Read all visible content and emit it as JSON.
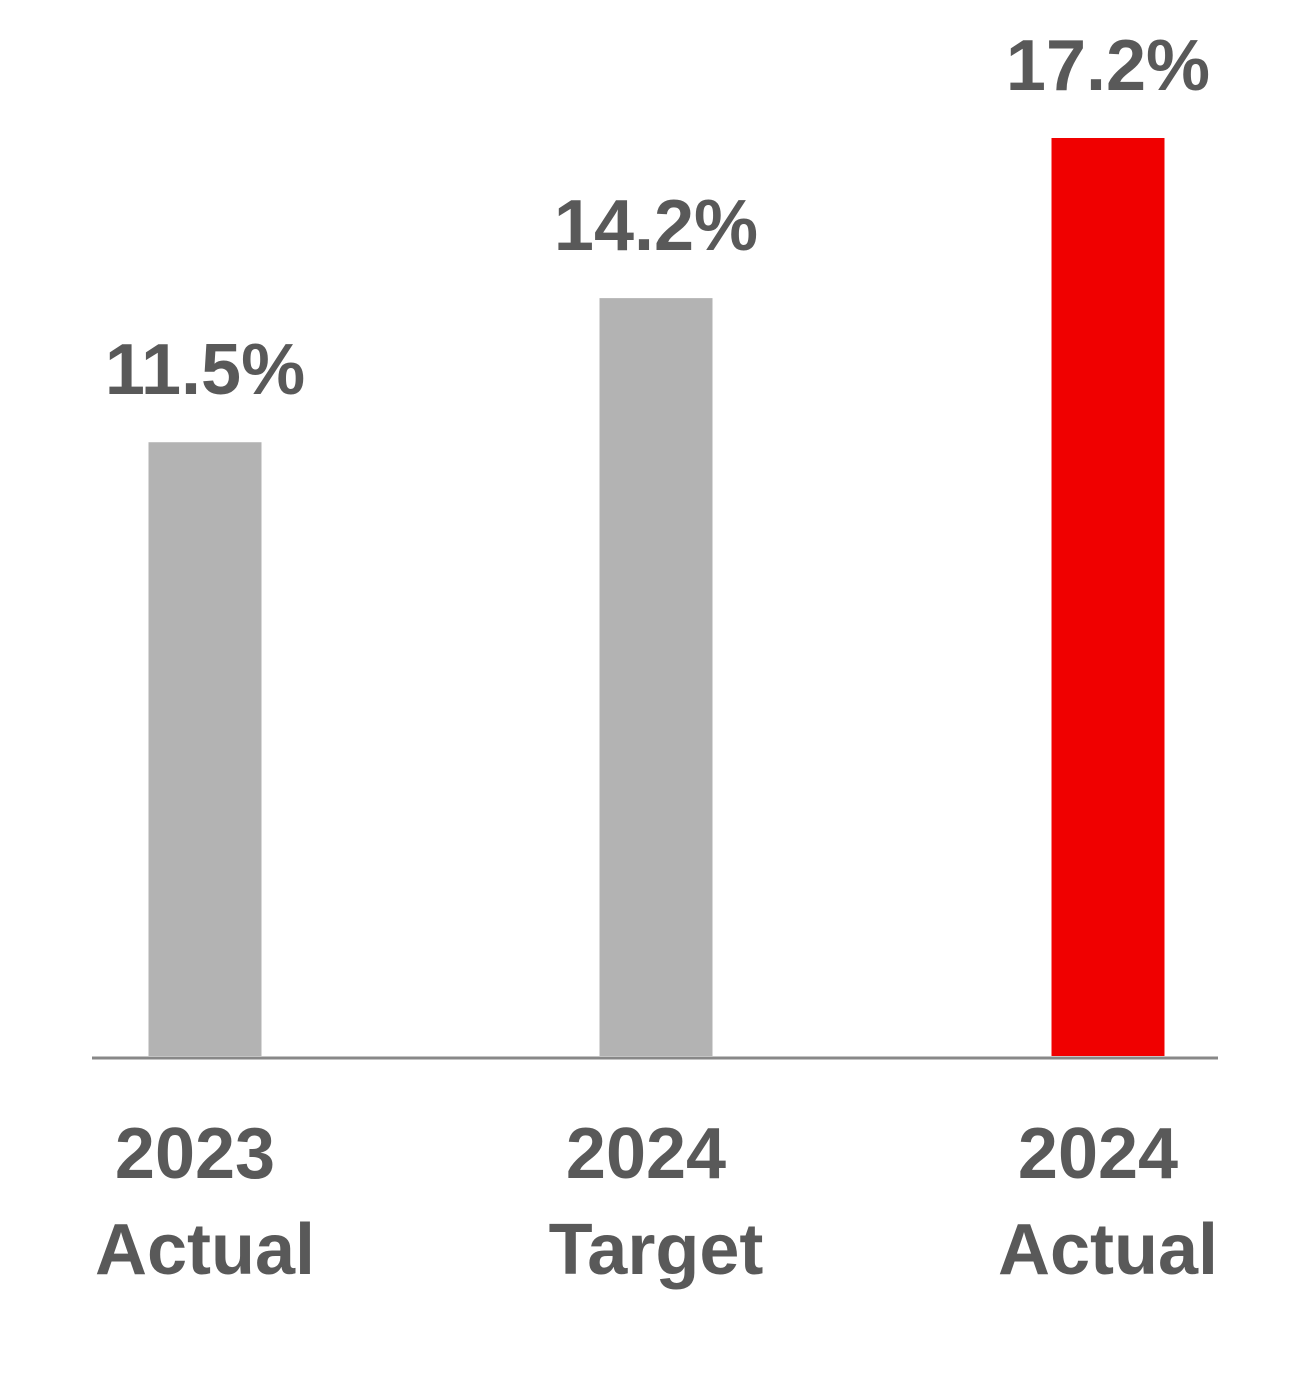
{
  "chart_data": {
    "type": "bar",
    "categories": [
      [
        "2023",
        "Actual"
      ],
      [
        "2024",
        "Target"
      ],
      [
        "2024",
        "Actual"
      ]
    ],
    "values": [
      11.5,
      14.2,
      17.2
    ],
    "value_labels": [
      "11.5%",
      "14.2%",
      "17.2%"
    ],
    "colors": [
      "#b3b3b3",
      "#b3b3b3",
      "#f00000"
    ]
  }
}
